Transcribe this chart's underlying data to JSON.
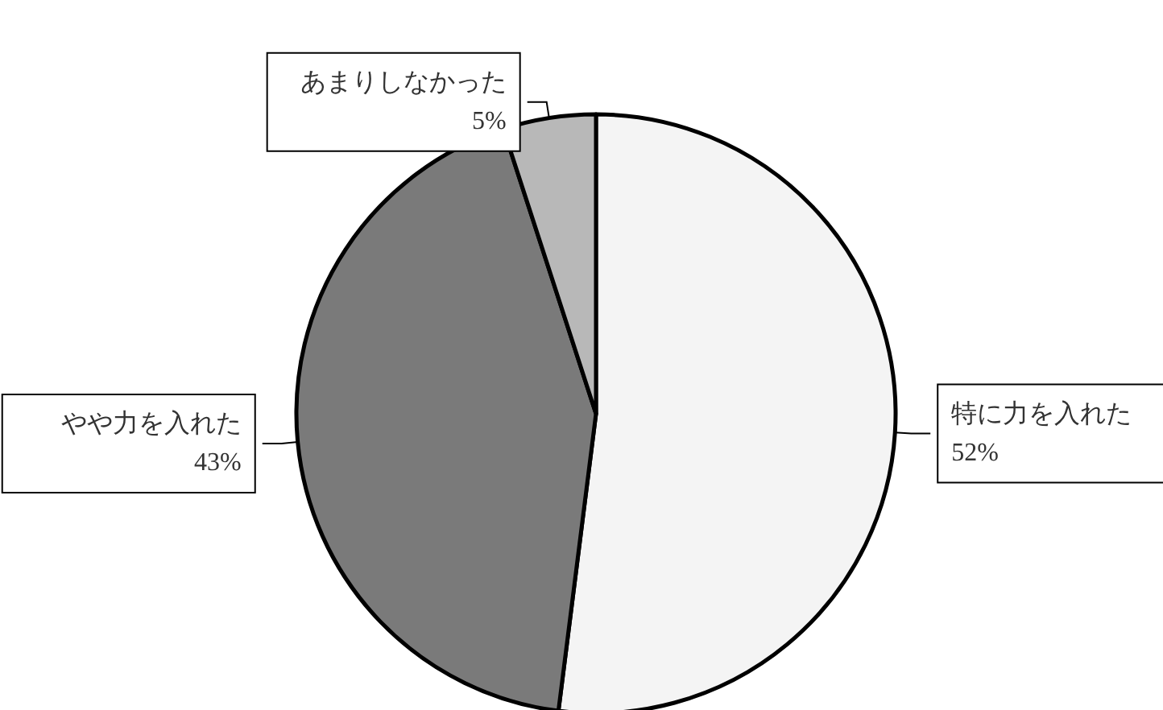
{
  "chart_data": {
    "type": "pie",
    "categories": [
      "特に力を入れた",
      "やや力を入れた",
      "あまりしなかった"
    ],
    "values": [
      52,
      43,
      5
    ],
    "value_labels": [
      "52%",
      "43%",
      "5%"
    ],
    "colors": [
      "#f4f4f4",
      "#7a7a7a",
      "#b8b8b8"
    ],
    "legend": false
  }
}
